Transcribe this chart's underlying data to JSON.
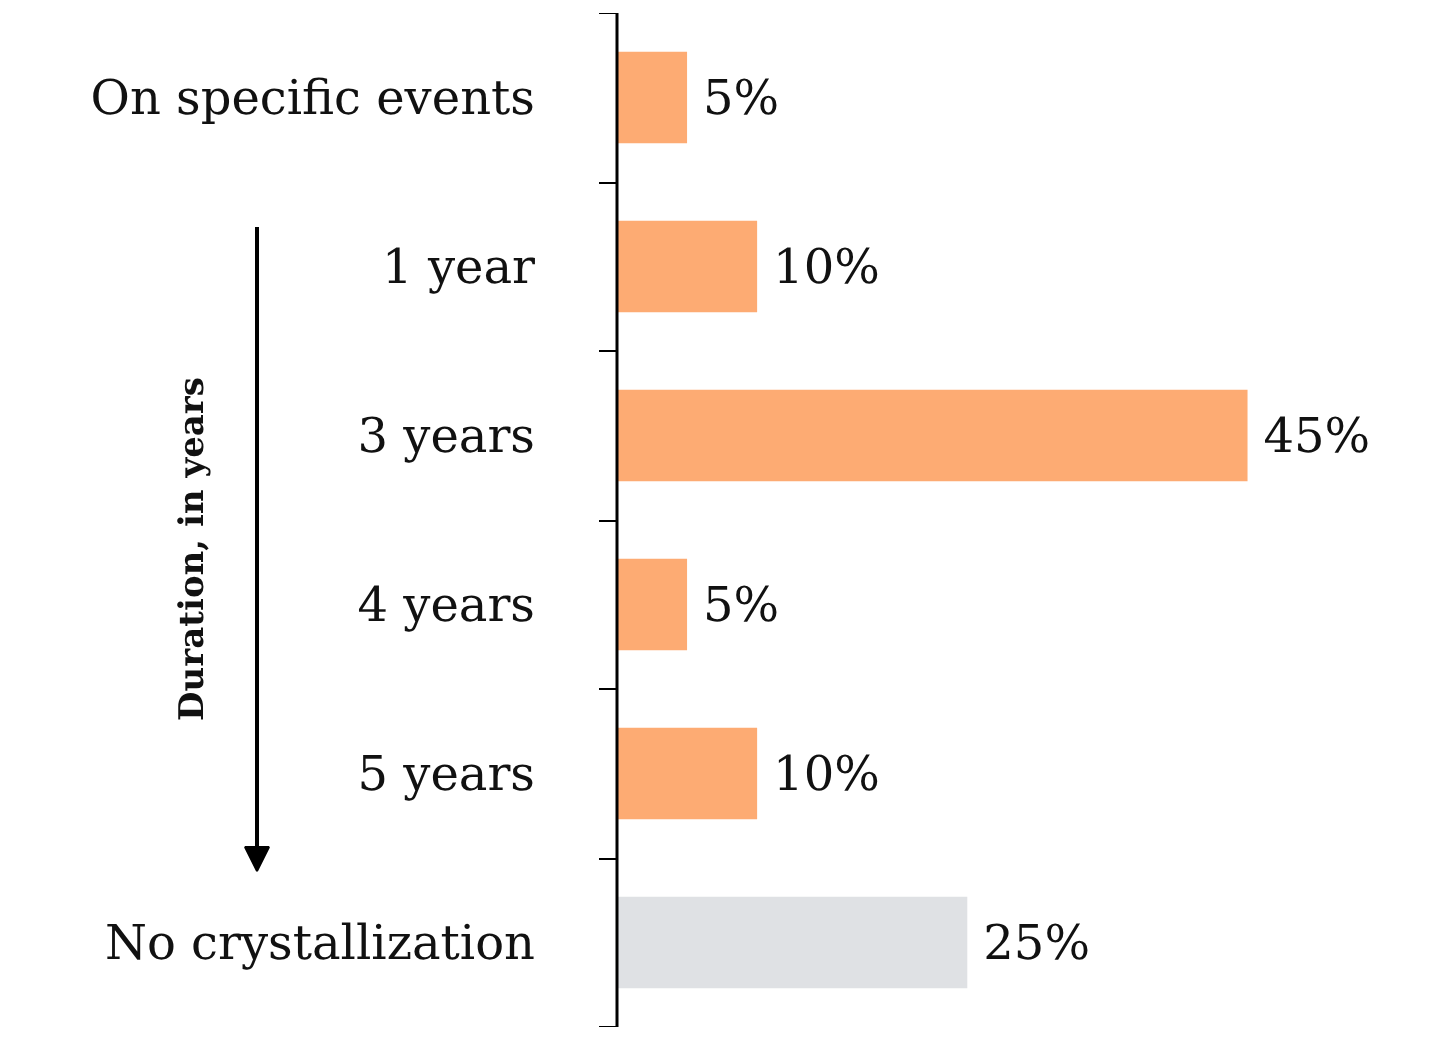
{
  "chart_data": {
    "type": "bar",
    "orientation": "horizontal",
    "categories": [
      "On specific events",
      "1 year",
      "3 years",
      "4 years",
      "5 years",
      "No crystallization"
    ],
    "values": [
      5,
      10,
      45,
      5,
      10,
      25
    ],
    "colors": [
      "#fdab73",
      "#fdab73",
      "#fdab73",
      "#fdab73",
      "#fdab73",
      "#dfe1e4"
    ],
    "value_labels": [
      "5%",
      "10%",
      "45%",
      "5%",
      "10%",
      "25%"
    ],
    "annotations": [
      "Duration, in years"
    ],
    "grid": false,
    "tick_labels": "y"
  }
}
